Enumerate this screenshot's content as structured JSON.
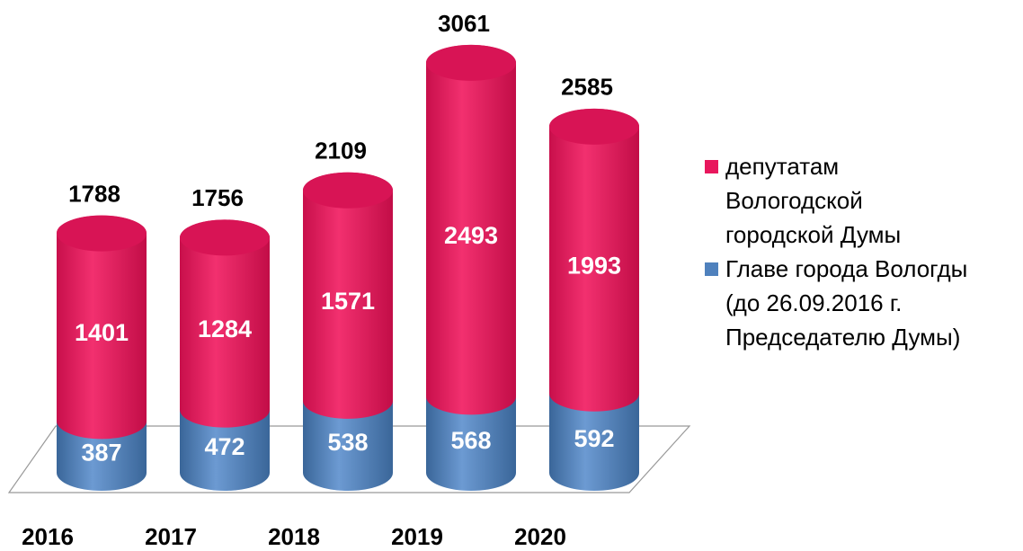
{
  "chart_data": {
    "type": "bar",
    "stacked": true,
    "categories": [
      "2016",
      "2017",
      "2018",
      "2019",
      "2020"
    ],
    "series": [
      {
        "name": "Главе города Вологды\n(до 26.09.2016 г.\nПредседателю Думы)",
        "color": "#4f81bd",
        "values": [
          387,
          472,
          538,
          568,
          592
        ]
      },
      {
        "name": "депутатам\nВологодской\nгородской Думы",
        "color": "#e8175d",
        "values": [
          1401,
          1284,
          1571,
          2493,
          1993
        ]
      }
    ],
    "totals": [
      1788,
      1756,
      2109,
      3061,
      2585
    ],
    "legend": "right"
  }
}
